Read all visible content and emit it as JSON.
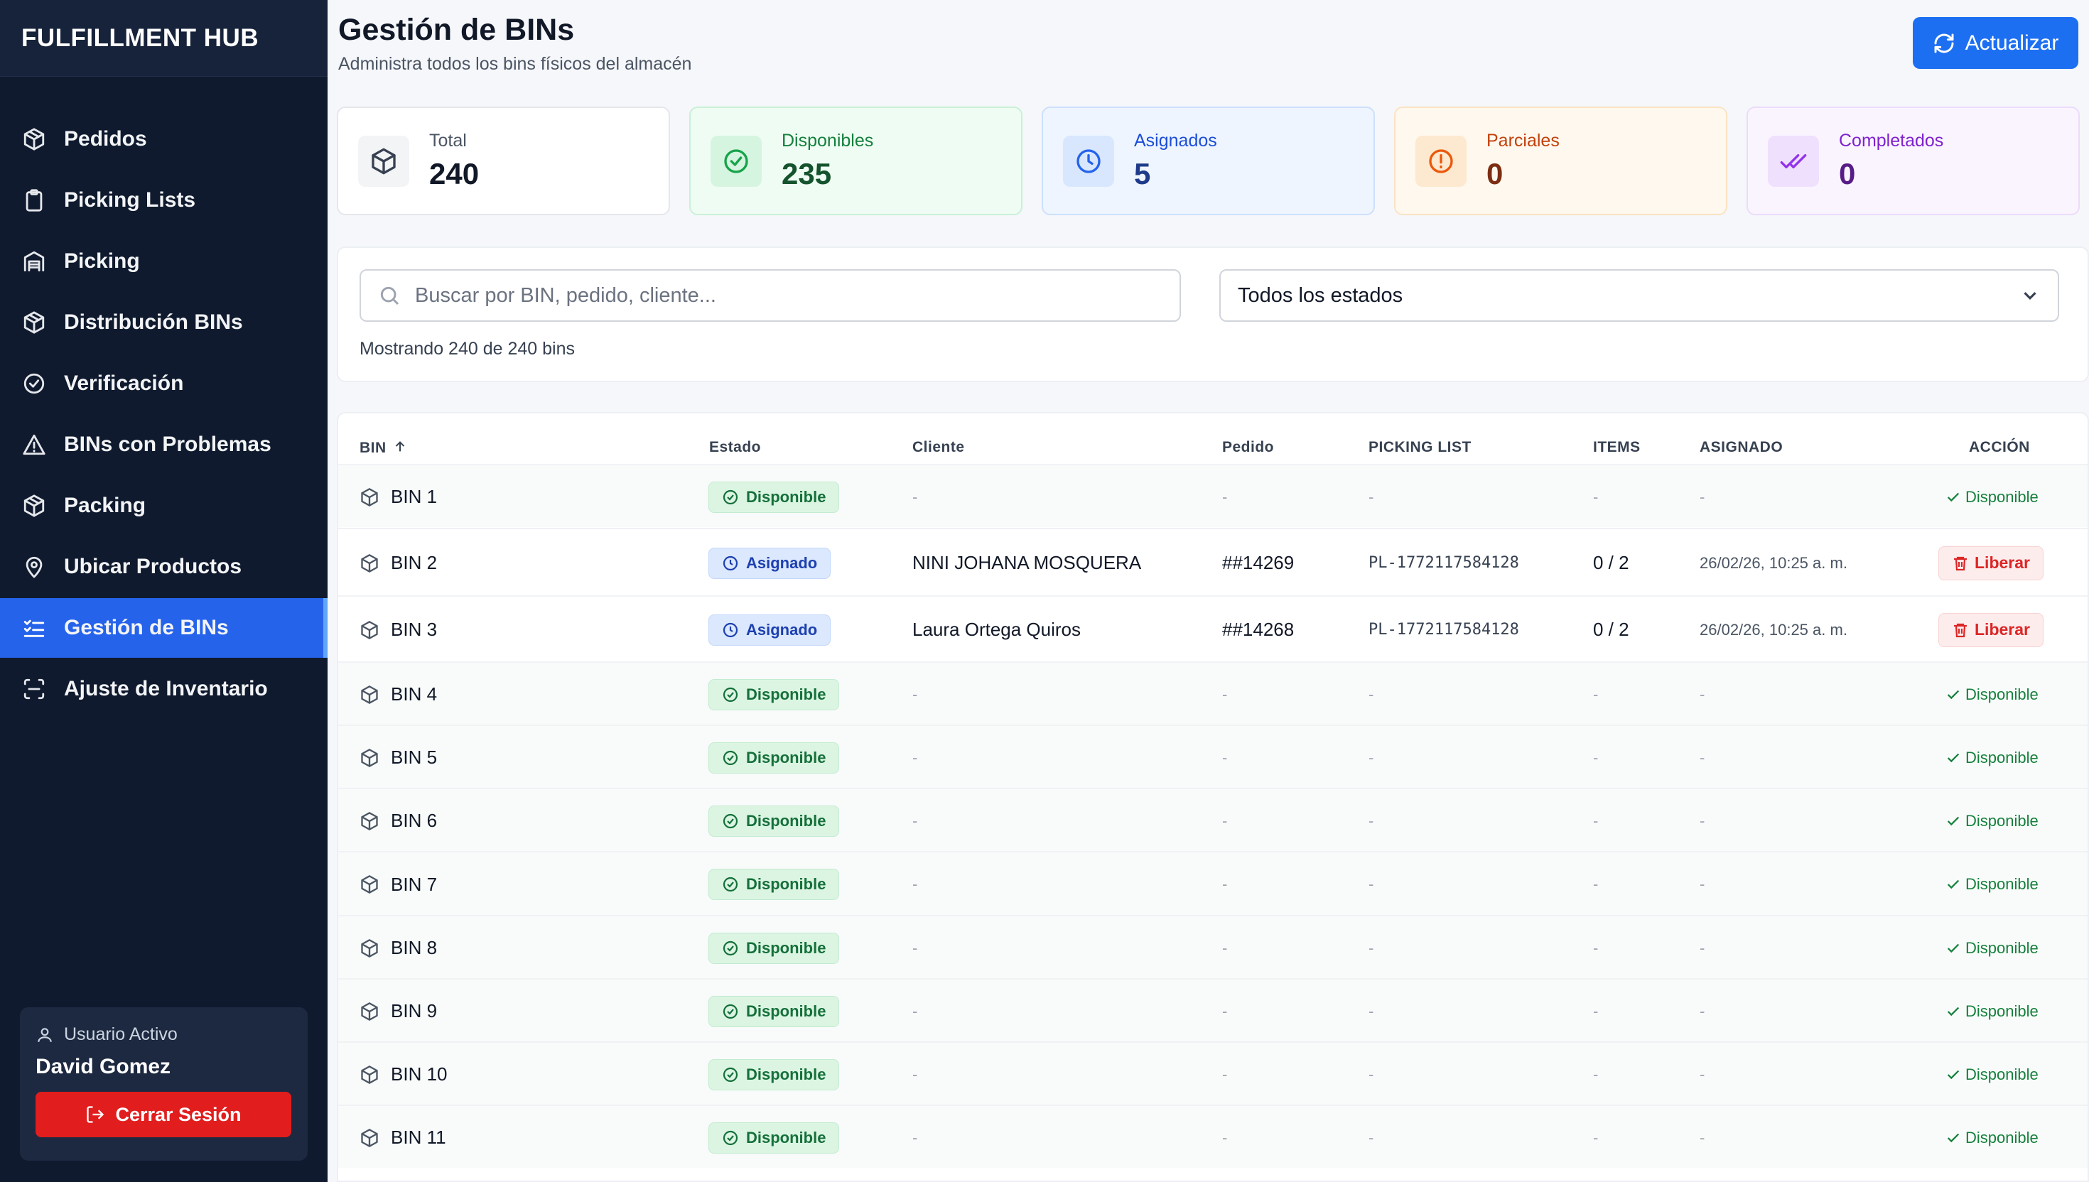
{
  "app": {
    "brand": "FULFILLMENT HUB"
  },
  "sidebar": {
    "items": [
      {
        "label": "Pedidos",
        "icon": "package-icon"
      },
      {
        "label": "Picking Lists",
        "icon": "clipboard-icon"
      },
      {
        "label": "Picking",
        "icon": "warehouse-icon"
      },
      {
        "label": "Distribución BINs",
        "icon": "package-icon"
      },
      {
        "label": "Verificación",
        "icon": "check-circle-icon"
      },
      {
        "label": "BINs con Problemas",
        "icon": "alert-triangle-icon"
      },
      {
        "label": "Packing",
        "icon": "package-icon"
      },
      {
        "label": "Ubicar Productos",
        "icon": "map-pin-icon"
      },
      {
        "label": "Gestión de BINs",
        "icon": "list-checks-icon",
        "active": true
      },
      {
        "label": "Ajuste de Inventario",
        "icon": "scan-icon"
      }
    ],
    "user": {
      "label": "Usuario Activo",
      "name": "David Gomez",
      "logout_label": "Cerrar Sesión"
    }
  },
  "header": {
    "title": "Gestión de BINs",
    "subtitle": "Administra todos los bins físicos del almacén",
    "refresh_label": "Actualizar"
  },
  "stats": [
    {
      "label": "Total",
      "value": "240",
      "icon": "box-icon",
      "bg": "#ffffff",
      "border": "#e5e7eb",
      "icon_bg": "#f3f4f6",
      "icon_color": "#374151",
      "label_color": "#4b5563",
      "value_color": "#111827"
    },
    {
      "label": "Disponibles",
      "value": "235",
      "icon": "check-circle-icon",
      "bg": "#effcf3",
      "border": "#c9f0d6",
      "icon_bg": "#d6f5e0",
      "icon_color": "#16a34a",
      "label_color": "#15803d",
      "value_color": "#14532d"
    },
    {
      "label": "Asignados",
      "value": "5",
      "icon": "clock-icon",
      "bg": "#eef5ff",
      "border": "#cde0fb",
      "icon_bg": "#d8e7fd",
      "icon_color": "#2563eb",
      "label_color": "#1d4ed8",
      "value_color": "#1e3a8a"
    },
    {
      "label": "Parciales",
      "value": "0",
      "icon": "alert-circle-icon",
      "bg": "#fff8ee",
      "border": "#fbe3c4",
      "icon_bg": "#fde9cf",
      "icon_color": "#ea580c",
      "label_color": "#c2410c",
      "value_color": "#7c2d12"
    },
    {
      "label": "Completados",
      "value": "0",
      "icon": "check-check-icon",
      "bg": "#faf4ff",
      "border": "#ecdcfb",
      "icon_bg": "#efe0fd",
      "icon_color": "#9333ea",
      "label_color": "#7e22ce",
      "value_color": "#581c87"
    }
  ],
  "filters": {
    "search_placeholder": "Buscar por BIN, pedido, cliente...",
    "status_selected": "Todos los estados",
    "count_text": "Mostrando 240 de 240 bins"
  },
  "table": {
    "headers": [
      "BIN",
      "Estado",
      "Cliente",
      "Pedido",
      "PICKING LIST",
      "ITEMS",
      "ASIGNADO",
      "ACCIÓN"
    ],
    "rows": [
      {
        "bin": "BIN 1",
        "estado": "Disponible",
        "cliente": "-",
        "pedido": "-",
        "picking": "-",
        "items": "-",
        "asignado": "-",
        "accion": "Disponible"
      },
      {
        "bin": "BIN 2",
        "estado": "Asignado",
        "cliente": "NINI JOHANA MOSQUERA",
        "pedido": "##14269",
        "picking": "PL-1772117584128",
        "items": "0 / 2",
        "asignado": "26/02/26, 10:25 a. m.",
        "accion": "Liberar"
      },
      {
        "bin": "BIN 3",
        "estado": "Asignado",
        "cliente": "Laura Ortega Quiros",
        "pedido": "##14268",
        "picking": "PL-1772117584128",
        "items": "0 / 2",
        "asignado": "26/02/26, 10:25 a. m.",
        "accion": "Liberar"
      },
      {
        "bin": "BIN 4",
        "estado": "Disponible",
        "cliente": "-",
        "pedido": "-",
        "picking": "-",
        "items": "-",
        "asignado": "-",
        "accion": "Disponible"
      },
      {
        "bin": "BIN 5",
        "estado": "Disponible",
        "cliente": "-",
        "pedido": "-",
        "picking": "-",
        "items": "-",
        "asignado": "-",
        "accion": "Disponible"
      },
      {
        "bin": "BIN 6",
        "estado": "Disponible",
        "cliente": "-",
        "pedido": "-",
        "picking": "-",
        "items": "-",
        "asignado": "-",
        "accion": "Disponible"
      },
      {
        "bin": "BIN 7",
        "estado": "Disponible",
        "cliente": "-",
        "pedido": "-",
        "picking": "-",
        "items": "-",
        "asignado": "-",
        "accion": "Disponible"
      },
      {
        "bin": "BIN 8",
        "estado": "Disponible",
        "cliente": "-",
        "pedido": "-",
        "picking": "-",
        "items": "-",
        "asignado": "-",
        "accion": "Disponible"
      },
      {
        "bin": "BIN 9",
        "estado": "Disponible",
        "cliente": "-",
        "pedido": "-",
        "picking": "-",
        "items": "-",
        "asignado": "-",
        "accion": "Disponible"
      },
      {
        "bin": "BIN 10",
        "estado": "Disponible",
        "cliente": "-",
        "pedido": "-",
        "picking": "-",
        "items": "-",
        "asignado": "-",
        "accion": "Disponible"
      },
      {
        "bin": "BIN 11",
        "estado": "Disponible",
        "cliente": "-",
        "pedido": "-",
        "picking": "-",
        "items": "-",
        "asignado": "-",
        "accion": "Disponible"
      }
    ]
  }
}
